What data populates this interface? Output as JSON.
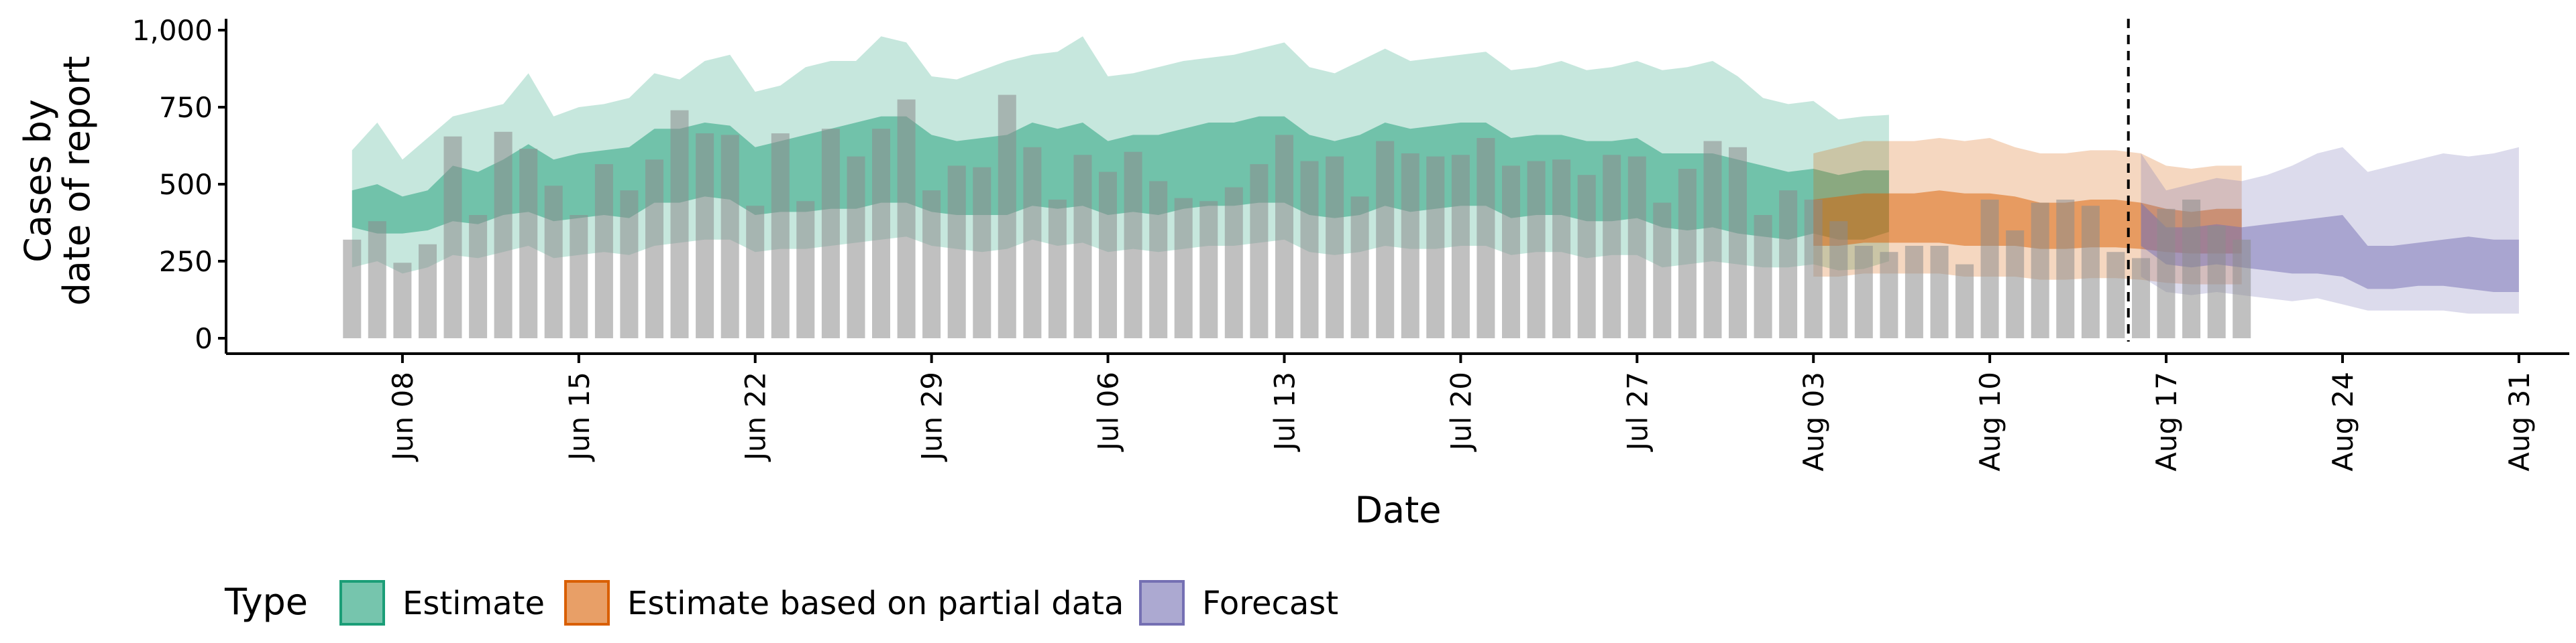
{
  "chart_data": {
    "type": "bar",
    "title": "",
    "xlabel": "Date",
    "ylabel_lines": [
      "Cases by",
      "date of report"
    ],
    "ylim": [
      0,
      1000
    ],
    "yticks": [
      0,
      250,
      500,
      750,
      1000
    ],
    "ytick_labels": [
      "0",
      "250",
      "500",
      "750",
      "1,000"
    ],
    "xlim": [
      "2020-06-01",
      "2020-09-02"
    ],
    "xticks": [
      "2020-06-08",
      "2020-06-15",
      "2020-06-22",
      "2020-06-29",
      "2020-07-06",
      "2020-07-13",
      "2020-07-20",
      "2020-07-27",
      "2020-08-03",
      "2020-08-10",
      "2020-08-17",
      "2020-08-24",
      "2020-08-31"
    ],
    "xtick_labels": [
      "Jun 08",
      "Jun 15",
      "Jun 22",
      "Jun 29",
      "Jul 06",
      "Jul 13",
      "Jul 20",
      "Jul 27",
      "Aug 03",
      "Aug 10",
      "Aug 17",
      "Aug 24",
      "Aug 31"
    ],
    "forecast_date": "2020-08-15",
    "observed_cases": {
      "start_date": "2020-06-06",
      "values": [
        320,
        380,
        245,
        305,
        655,
        400,
        670,
        615,
        495,
        400,
        565,
        480,
        580,
        740,
        665,
        660,
        430,
        665,
        445,
        680,
        590,
        680,
        775,
        480,
        560,
        555,
        790,
        620,
        450,
        595,
        540,
        605,
        510,
        455,
        445,
        490,
        565,
        660,
        575,
        590,
        460,
        640,
        600,
        590,
        595,
        650,
        560,
        575,
        580,
        530,
        595,
        590,
        440,
        550,
        640,
        620,
        400,
        480,
        450,
        380,
        300,
        280,
        300,
        300,
        240,
        450,
        350,
        440,
        450,
        430,
        280,
        260,
        420,
        450,
        365,
        320
      ]
    },
    "series": [
      {
        "name": "Estimate",
        "color": "#1b9e77",
        "start_date": "2020-06-06",
        "outer_upper": [
          610,
          700,
          580,
          650,
          720,
          740,
          760,
          860,
          720,
          750,
          760,
          780,
          860,
          840,
          900,
          920,
          800,
          820,
          880,
          900,
          900,
          980,
          960,
          850,
          840,
          870,
          900,
          920,
          930,
          980,
          850,
          860,
          880,
          900,
          910,
          920,
          940,
          960,
          880,
          860,
          900,
          940,
          900,
          910,
          920,
          930,
          870,
          880,
          900,
          870,
          880,
          900,
          870,
          880,
          900,
          850,
          780,
          760,
          770,
          710,
          720,
          725
        ],
        "inner_upper": [
          480,
          500,
          460,
          480,
          560,
          540,
          580,
          630,
          580,
          600,
          610,
          620,
          680,
          680,
          700,
          690,
          620,
          640,
          660,
          680,
          700,
          720,
          720,
          660,
          640,
          650,
          660,
          700,
          680,
          700,
          640,
          660,
          660,
          680,
          700,
          700,
          720,
          720,
          660,
          640,
          660,
          700,
          680,
          690,
          700,
          700,
          650,
          660,
          660,
          640,
          640,
          650,
          600,
          600,
          600,
          580,
          560,
          540,
          550,
          530,
          545,
          545
        ],
        "inner_lower": [
          360,
          340,
          340,
          350,
          380,
          370,
          400,
          410,
          380,
          390,
          400,
          390,
          440,
          440,
          460,
          450,
          400,
          410,
          410,
          420,
          420,
          440,
          440,
          410,
          400,
          400,
          400,
          430,
          420,
          430,
          400,
          410,
          400,
          420,
          430,
          430,
          440,
          440,
          400,
          390,
          400,
          430,
          410,
          420,
          430,
          430,
          390,
          400,
          400,
          380,
          380,
          390,
          360,
          350,
          360,
          340,
          330,
          320,
          340,
          320,
          320,
          345
        ],
        "outer_lower": [
          230,
          250,
          210,
          230,
          270,
          260,
          280,
          300,
          260,
          270,
          280,
          270,
          300,
          310,
          320,
          320,
          280,
          290,
          290,
          300,
          310,
          320,
          330,
          300,
          290,
          280,
          290,
          320,
          300,
          310,
          280,
          290,
          280,
          290,
          300,
          300,
          310,
          320,
          280,
          270,
          280,
          300,
          290,
          290,
          300,
          300,
          270,
          280,
          280,
          260,
          270,
          270,
          230,
          240,
          250,
          240,
          230,
          230,
          240,
          220,
          225,
          250
        ]
      },
      {
        "name": "Estimate based on partial data",
        "color": "#d95f02",
        "start_date": "2020-08-03",
        "outer_upper": [
          600,
          620,
          640,
          640,
          640,
          650,
          640,
          650,
          620,
          600,
          600,
          610,
          610,
          600,
          560,
          550,
          560,
          560
        ],
        "inner_upper": [
          450,
          460,
          470,
          470,
          470,
          480,
          470,
          470,
          460,
          440,
          440,
          450,
          450,
          440,
          420,
          410,
          420,
          420
        ],
        "inner_lower": [
          300,
          300,
          310,
          310,
          310,
          310,
          300,
          300,
          300,
          290,
          290,
          295,
          295,
          290,
          280,
          275,
          275,
          275
        ],
        "outer_lower": [
          200,
          200,
          210,
          210,
          210,
          210,
          200,
          200,
          200,
          190,
          190,
          195,
          195,
          190,
          180,
          175,
          175,
          175
        ]
      },
      {
        "name": "Forecast",
        "color": "#7570b3",
        "start_date": "2020-08-16",
        "outer_upper": [
          600,
          480,
          500,
          520,
          510,
          530,
          560,
          600,
          620,
          540,
          560,
          580,
          600,
          590,
          600,
          620
        ],
        "inner_upper": [
          440,
          360,
          360,
          370,
          360,
          370,
          380,
          390,
          400,
          300,
          300,
          310,
          320,
          330,
          320,
          320
        ],
        "inner_lower": [
          300,
          240,
          230,
          240,
          230,
          220,
          210,
          210,
          200,
          160,
          160,
          170,
          170,
          160,
          150,
          150
        ],
        "outer_lower": [
          200,
          150,
          140,
          150,
          140,
          130,
          120,
          130,
          110,
          90,
          90,
          90,
          90,
          80,
          80,
          80
        ]
      }
    ],
    "legend": {
      "position": "bottom",
      "title": "Type",
      "entries": [
        "Estimate",
        "Estimate based on partial data",
        "Forecast"
      ]
    },
    "grid": false
  }
}
